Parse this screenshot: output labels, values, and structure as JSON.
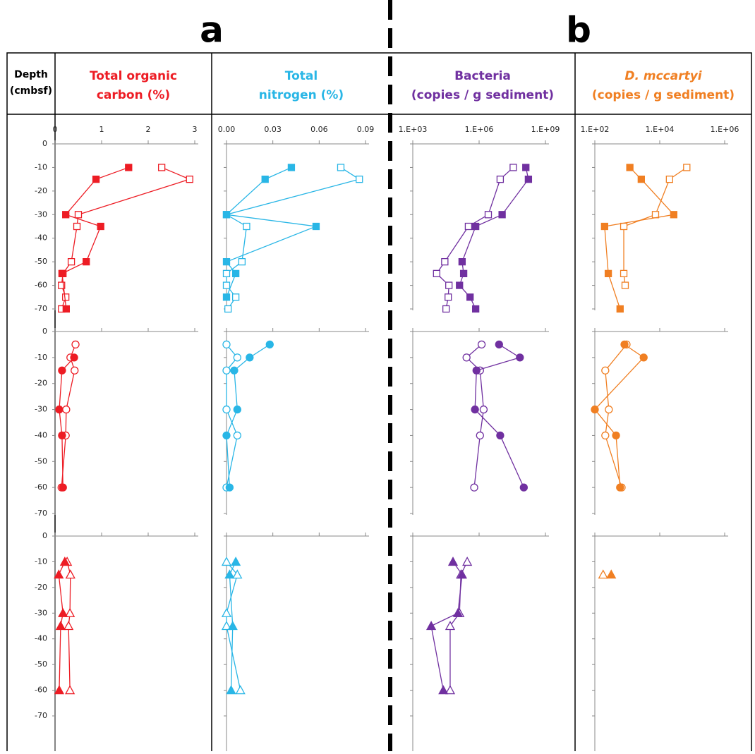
{
  "panel_labels": [
    "a",
    "b"
  ],
  "chart_data": [
    {
      "type": "line",
      "title": [
        "Total organic",
        "carbon (%)"
      ],
      "color": "#ed1c24",
      "ylabel": [
        "Depth",
        "(cmbsf)"
      ],
      "ylim": [
        -70,
        0
      ],
      "yticks": [
        0,
        -10,
        -20,
        -30,
        -40,
        -50,
        -60,
        -70
      ],
      "xlim": [
        0,
        3
      ],
      "xticks": [
        0,
        1,
        2,
        3
      ],
      "rows": [
        {
          "marker": "square",
          "series": [
            {
              "filled": false,
              "depths": [
                -10,
                -15,
                -30,
                -35,
                -50,
                -55,
                -60,
                -65,
                -70
              ],
              "values": [
                2.29,
                2.89,
                0.5,
                0.47,
                0.35,
                0.17,
                0.14,
                0.23,
                0.14
              ]
            },
            {
              "filled": true,
              "depths": [
                -10,
                -15,
                -30,
                -35,
                -50,
                -55,
                -70
              ],
              "values": [
                1.58,
                0.88,
                0.23,
                0.98,
                0.67,
                0.15,
                0.24
              ]
            }
          ]
        },
        {
          "marker": "circle",
          "series": [
            {
              "filled": false,
              "depths": [
                -5,
                -10,
                -15,
                -30,
                -40,
                -60
              ],
              "values": [
                0.44,
                0.33,
                0.42,
                0.24,
                0.23,
                0.14
              ]
            },
            {
              "filled": true,
              "depths": [
                -10,
                -15,
                -30,
                -40,
                -60
              ],
              "values": [
                0.41,
                0.15,
                0.09,
                0.15,
                0.17
              ]
            }
          ]
        },
        {
          "marker": "triangle",
          "series": [
            {
              "filled": false,
              "depths": [
                -10,
                -15,
                -30,
                -35,
                -60
              ],
              "values": [
                0.26,
                0.33,
                0.32,
                0.29,
                0.32
              ]
            },
            {
              "filled": true,
              "depths": [
                -10,
                -15,
                -30,
                -35,
                -60
              ],
              "values": [
                0.21,
                0.08,
                0.17,
                0.12,
                0.09
              ]
            }
          ]
        }
      ]
    },
    {
      "type": "line",
      "title": [
        "Total",
        "nitrogen (%)"
      ],
      "color": "#29b6e6",
      "xlim": [
        0,
        0.09
      ],
      "xticks": [
        {
          "value": 0,
          "label": "0.00"
        },
        {
          "value": 0.03,
          "label": "0.03"
        },
        {
          "value": 0.06,
          "label": "0.06"
        },
        {
          "value": 0.09,
          "label": "0.09"
        }
      ],
      "rows": [
        {
          "marker": "square",
          "series": [
            {
              "filled": false,
              "depths": [
                -10,
                -15,
                -30,
                -35,
                -50,
                -55,
                -60,
                -65,
                -70
              ],
              "values": [
                0.074,
                0.086,
                0,
                0.013,
                0.01,
                0,
                0,
                0.006,
                0.001
              ]
            },
            {
              "filled": true,
              "depths": [
                -10,
                -15,
                -30,
                -35,
                -50,
                -55,
                -65
              ],
              "values": [
                0.042,
                0.025,
                0,
                0.058,
                0,
                0.006,
                0
              ]
            }
          ]
        },
        {
          "marker": "circle",
          "series": [
            {
              "filled": false,
              "depths": [
                -5,
                -10,
                -15,
                -30,
                -40,
                -60
              ],
              "values": [
                0,
                0.007,
                0,
                0,
                0.007,
                0
              ]
            },
            {
              "filled": true,
              "depths": [
                -5,
                -10,
                -15,
                -30,
                -40,
                -60
              ],
              "values": [
                0.028,
                0.015,
                0.005,
                0.007,
                0,
                0.002
              ]
            }
          ]
        },
        {
          "marker": "triangle",
          "series": [
            {
              "filled": false,
              "depths": [
                -10,
                -15,
                -30,
                -35,
                -60
              ],
              "values": [
                0,
                0.007,
                0,
                0,
                0.009
              ]
            },
            {
              "filled": true,
              "depths": [
                -10,
                -15,
                -35,
                -60
              ],
              "values": [
                0.006,
                0.002,
                0.004,
                0.003
              ]
            }
          ]
        }
      ]
    },
    {
      "type": "line",
      "title": [
        "Bacteria",
        "(copies / g sediment)"
      ],
      "color": "#7030a0",
      "xscale": "log",
      "xlim": [
        1000,
        1000000000
      ],
      "xticks": [
        {
          "value": 1000,
          "label": "1.E+03"
        },
        {
          "value": 1000000,
          "label": "1.E+06"
        },
        {
          "value": 1000000000,
          "label": "1.E+09"
        }
      ],
      "rows": [
        {
          "marker": "square",
          "series": [
            {
              "filled": false,
              "depths": [
                -10,
                -15,
                -30,
                -35,
                -50,
                -55,
                -60,
                -65,
                -70
              ],
              "values": [
                35000000,
                9000000,
                2600000,
                330000,
                28000,
                12000,
                43000,
                40000,
                32000
              ]
            },
            {
              "filled": true,
              "depths": [
                -10,
                -15,
                -30,
                -35,
                -50,
                -55,
                -60,
                -65,
                -70
              ],
              "values": [
                130000000,
                170000000,
                11000000,
                700000,
                170000,
                200000,
                130000,
                390000,
                700000
              ]
            }
          ]
        },
        {
          "marker": "circle",
          "series": [
            {
              "filled": false,
              "depths": [
                -5,
                -10,
                -15,
                -30,
                -40,
                -60
              ],
              "values": [
                1300000,
                270000,
                1100000,
                1600000,
                1100000,
                600000
              ]
            },
            {
              "filled": true,
              "depths": [
                -5,
                -10,
                -15,
                -30,
                -40,
                -60
              ],
              "values": [
                8000000,
                70000000,
                760000,
                650000,
                9000000,
                105000000
              ]
            }
          ]
        },
        {
          "marker": "triangle",
          "series": [
            {
              "filled": false,
              "depths": [
                -10,
                -15,
                -30,
                -35,
                -60
              ],
              "values": [
                290000,
                150000,
                130000,
                49000,
                49000
              ]
            },
            {
              "filled": true,
              "depths": [
                -10,
                -15,
                -30,
                -35,
                -60
              ],
              "values": [
                66000,
                170000,
                110000,
                6800,
                24000
              ]
            }
          ]
        }
      ]
    },
    {
      "type": "line",
      "title": [
        "D. mccartyi",
        "(copies / g sediment)"
      ],
      "color": "#f07f22",
      "xscale": "log",
      "xlim": [
        100,
        1000000
      ],
      "xticks": [
        {
          "value": 100,
          "label": "1.E+02"
        },
        {
          "value": 10000,
          "label": "1.E+04"
        },
        {
          "value": 1000000,
          "label": "1.E+06"
        }
      ],
      "rows": [
        {
          "marker": "square",
          "series": [
            {
              "filled": false,
              "depths": [
                -10,
                -15,
                -30,
                -35,
                -55,
                -60
              ],
              "values": [
                68000,
                20000,
                7400,
                780,
                780,
                860
              ]
            },
            {
              "filled": true,
              "depths": [
                -10,
                -15,
                -30,
                -35,
                -55,
                -70
              ],
              "values": [
                1200,
                2700,
                27000,
                200,
                260,
                600
              ]
            }
          ]
        },
        {
          "marker": "circle",
          "series": [
            {
              "filled": false,
              "depths": [
                -5,
                -15,
                -30,
                -40,
                -60
              ],
              "values": [
                950,
                210,
                270,
                210,
                670
              ]
            },
            {
              "filled": true,
              "depths": [
                -5,
                -10,
                -30,
                -40,
                -60
              ],
              "values": [
                820,
                3200,
                100,
                450,
                600
              ]
            }
          ]
        },
        {
          "marker": "triangle",
          "series": [
            {
              "filled": false,
              "depths": [
                -15
              ],
              "values": [
                180
              ]
            },
            {
              "filled": true,
              "depths": [
                -15
              ],
              "values": [
                320
              ]
            }
          ]
        }
      ]
    }
  ]
}
